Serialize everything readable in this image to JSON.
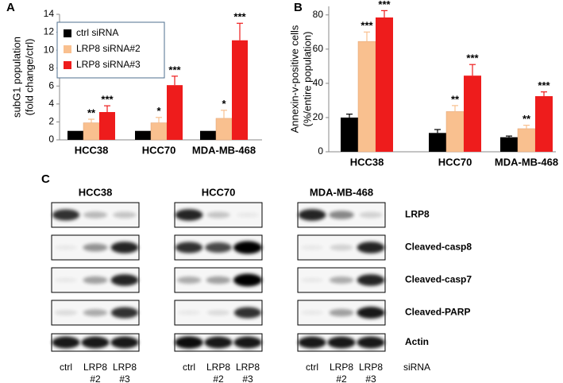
{
  "chart_data": [
    {
      "type": "bar",
      "panel": "A",
      "y_label": [
        "subG1 population",
        "(fold change/ctrl)"
      ],
      "categories": [
        "HCC38",
        "HCC70",
        "MDA-MB-468"
      ],
      "ylim": [
        0,
        14
      ],
      "yticks": [
        0,
        2,
        4,
        6,
        8,
        10,
        12,
        14
      ],
      "legend": "upper left",
      "series": [
        {
          "name": "ctrl siRNA",
          "color": "#000000",
          "values": [
            1,
            1,
            1
          ]
        },
        {
          "name": "LRP8 siRNA#2",
          "color": "#f9c08f",
          "values": [
            1.9,
            1.9,
            2.4
          ],
          "errors": [
            0.4,
            0.6,
            0.9
          ],
          "significance": [
            "**",
            "*",
            "*"
          ]
        },
        {
          "name": "LRP8 siRNA#3",
          "color": "#ee1c1c",
          "values": [
            3.1,
            6.1,
            11.1
          ],
          "errors": [
            0.7,
            1.0,
            1.9
          ],
          "significance": [
            "***",
            "***",
            "***"
          ]
        }
      ]
    },
    {
      "type": "bar",
      "panel": "B",
      "y_label": [
        "Annexin-v-positive cells",
        "(%/entire population)"
      ],
      "categories": [
        "HCC38",
        "HCC70",
        "MDA-MB-468"
      ],
      "ylim": [
        0,
        85
      ],
      "yticks": [
        0,
        20,
        40,
        60,
        80
      ],
      "series": [
        {
          "name": "ctrl siRNA",
          "color": "#000000",
          "values": [
            20,
            11,
            8.5
          ],
          "errors": [
            2,
            2,
            0.7
          ]
        },
        {
          "name": "LRP8 siRNA#2",
          "color": "#f9c08f",
          "values": [
            64.5,
            23.5,
            13.5
          ],
          "errors": [
            5.5,
            3.5,
            2
          ],
          "significance": [
            "***",
            "**",
            "**"
          ]
        },
        {
          "name": "LRP8 siRNA#3",
          "color": "#ee1c1c",
          "values": [
            78.5,
            44.5,
            32.5
          ],
          "errors": [
            4,
            6.5,
            2.5
          ],
          "significance": [
            "***",
            "***",
            "***"
          ]
        }
      ]
    }
  ],
  "blot": {
    "panel": "C",
    "groups": [
      "HCC38",
      "HCC70",
      "MDA-MB-468"
    ],
    "proteins": [
      "LRP8",
      "Cleaved-casp8",
      "Cleaved-casp7",
      "Cleaved-PARP",
      "Actin"
    ],
    "lanes": [
      [
        "ctrl"
      ],
      [
        "LRP8",
        "#2"
      ],
      [
        "LRP8",
        "#3"
      ]
    ],
    "treatment": "siRNA"
  }
}
